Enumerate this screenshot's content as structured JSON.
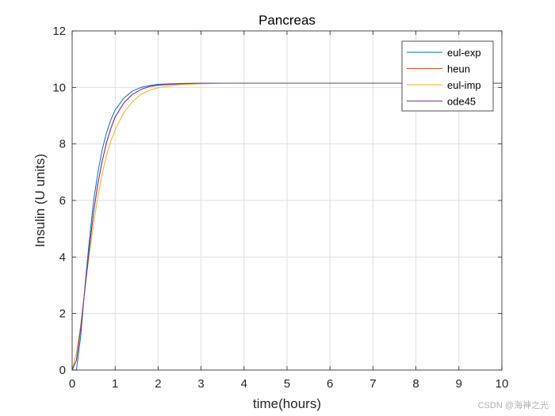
{
  "chart_data": {
    "type": "line",
    "title": "Pancreas",
    "xlabel": "time(hours)",
    "ylabel": "Insulin (U units)",
    "xlim": [
      0,
      10
    ],
    "ylim": [
      0,
      12
    ],
    "xticks": [
      0,
      1,
      2,
      3,
      4,
      5,
      6,
      7,
      8,
      9,
      10
    ],
    "yticks": [
      0,
      2,
      4,
      6,
      8,
      10,
      12
    ],
    "grid": true,
    "legend_position": "top-right",
    "series": [
      {
        "name": "eul-exp",
        "color": "#0072BD",
        "x": [
          0,
          0.1,
          0.2,
          0.3,
          0.4,
          0.5,
          0.6,
          0.7,
          0.8,
          0.9,
          1.0,
          1.2,
          1.4,
          1.6,
          1.8,
          2.0,
          2.5,
          3.0,
          3.5,
          4.0,
          5.0,
          7.0,
          10.0
        ],
        "y": [
          0,
          0.0,
          1.2,
          3.0,
          4.6,
          6.0,
          7.0,
          7.8,
          8.4,
          8.85,
          9.2,
          9.62,
          9.87,
          10.0,
          10.07,
          10.11,
          10.14,
          10.15,
          10.15,
          10.15,
          10.15,
          10.15,
          10.15
        ]
      },
      {
        "name": "heun",
        "color": "#D95319",
        "x": [
          0,
          0.1,
          0.2,
          0.3,
          0.4,
          0.5,
          0.6,
          0.7,
          0.8,
          0.9,
          1.0,
          1.2,
          1.4,
          1.6,
          1.8,
          2.0,
          2.5,
          3.0,
          3.5,
          4.0,
          5.0,
          7.0,
          10.0
        ],
        "y": [
          0,
          0.35,
          1.5,
          2.9,
          4.3,
          5.6,
          6.6,
          7.4,
          8.05,
          8.55,
          8.95,
          9.45,
          9.75,
          9.93,
          10.03,
          10.08,
          10.13,
          10.15,
          10.15,
          10.15,
          10.15,
          10.15,
          10.15
        ]
      },
      {
        "name": "eul-imp",
        "color": "#EDB120",
        "x": [
          0,
          0.1,
          0.2,
          0.3,
          0.4,
          0.5,
          0.6,
          0.7,
          0.8,
          0.9,
          1.0,
          1.2,
          1.4,
          1.6,
          1.8,
          2.0,
          2.5,
          3.0,
          3.5,
          4.0,
          5.0,
          7.0,
          10.0
        ],
        "y": [
          0,
          0.6,
          1.6,
          2.9,
          4.1,
          5.2,
          6.15,
          6.95,
          7.6,
          8.1,
          8.5,
          9.1,
          9.5,
          9.75,
          9.9,
          9.99,
          10.1,
          10.13,
          10.15,
          10.15,
          10.15,
          10.15,
          10.15
        ]
      },
      {
        "name": "ode45",
        "color": "#7E2F8E",
        "x": [
          0,
          0.1,
          0.2,
          0.3,
          0.4,
          0.5,
          0.6,
          0.7,
          0.8,
          0.9,
          1.0,
          1.2,
          1.4,
          1.6,
          1.8,
          2.0,
          2.5,
          3.0,
          3.5,
          4.0,
          5.0,
          7.0,
          10.0
        ],
        "y": [
          0,
          0.35,
          1.5,
          2.9,
          4.3,
          5.6,
          6.6,
          7.4,
          8.05,
          8.55,
          8.95,
          9.45,
          9.75,
          9.93,
          10.03,
          10.08,
          10.13,
          10.15,
          10.15,
          10.15,
          10.15,
          10.15,
          10.15
        ]
      }
    ]
  },
  "watermark": "CSDN @海神之光"
}
